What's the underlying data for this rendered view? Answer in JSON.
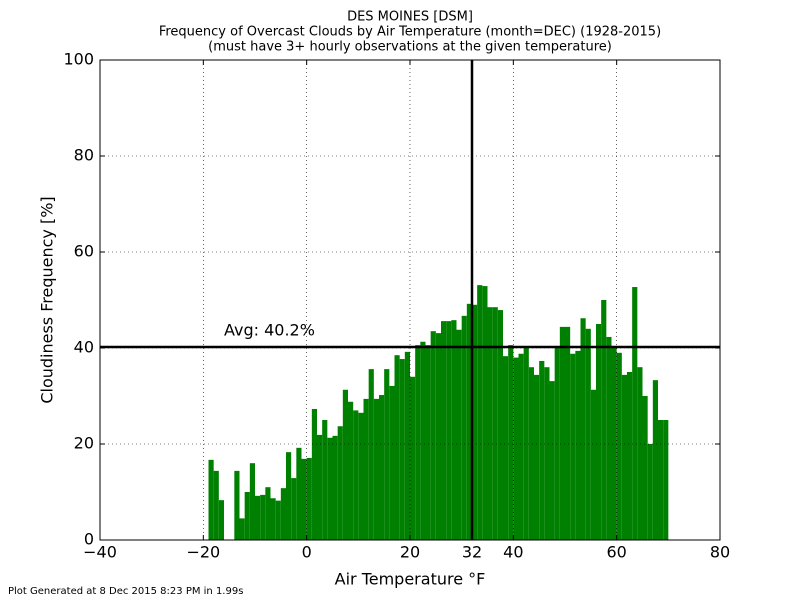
{
  "chart_data": {
    "type": "bar",
    "title": [
      "DES MOINES [DSM]",
      "Frequency of Overcast Clouds by Air Temperature (month=DEC) (1928-2015)",
      "(must have 3+ hourly observations at the given temperature)"
    ],
    "x_label": "Air Temperature °F",
    "y_label": "Cloudiness Frequency [%]",
    "footer": "Plot Generated at 8 Dec 2015 8:23 PM in 1.99s",
    "color": "#008000",
    "x": [
      -19,
      -18,
      -17,
      -16,
      -15,
      -14,
      -13,
      -12,
      -11,
      -10,
      -9,
      -8,
      -7,
      -6,
      -5,
      -4,
      -3,
      -2,
      -1,
      0,
      1,
      2,
      3,
      4,
      5,
      6,
      7,
      8,
      9,
      10,
      11,
      12,
      13,
      14,
      15,
      16,
      17,
      18,
      19,
      20,
      21,
      22,
      23,
      24,
      25,
      26,
      27,
      28,
      29,
      30,
      31,
      32,
      33,
      34,
      35,
      36,
      37,
      38,
      39,
      40,
      41,
      42,
      43,
      44,
      45,
      46,
      47,
      48,
      49,
      50,
      51,
      52,
      53,
      54,
      55,
      56,
      57,
      58,
      59,
      60,
      61,
      62,
      63,
      64,
      65,
      66,
      67,
      68,
      69
    ],
    "values": [
      16.7,
      14.4,
      8.3,
      null,
      null,
      14.4,
      4.5,
      10.0,
      16.0,
      9.2,
      9.4,
      11.0,
      8.7,
      8.2,
      10.8,
      18.3,
      12.9,
      19.2,
      16.9,
      17.1,
      27.3,
      21.9,
      25.0,
      21.3,
      21.7,
      23.7,
      31.3,
      28.8,
      27.0,
      26.5,
      29.4,
      35.6,
      29.4,
      30.2,
      35.6,
      32.1,
      38.5,
      37.7,
      39.2,
      34.0,
      40.6,
      41.3,
      40.6,
      43.5,
      43.1,
      45.6,
      45.6,
      45.8,
      43.8,
      46.7,
      49.2,
      49.0,
      53.1,
      52.9,
      48.5,
      48.5,
      47.9,
      38.3,
      40.6,
      38.0,
      38.8,
      40.0,
      36.0,
      34.4,
      37.3,
      36.0,
      33.1,
      40.2,
      44.4,
      44.4,
      38.8,
      39.4,
      46.2,
      44.0,
      31.3,
      45.0,
      50.0,
      42.3,
      40.2,
      39.0,
      34.4,
      35.0,
      52.7,
      36.0,
      30.0,
      20.0,
      33.3,
      25.0,
      25.0
    ],
    "xlim": [
      -40,
      80
    ],
    "xticks": [
      {
        "value": -40,
        "label": "−40"
      },
      {
        "value": -20,
        "label": "−20"
      },
      0,
      20,
      32,
      40,
      60,
      80
    ],
    "ylim": [
      0,
      100
    ],
    "yticks": [
      0,
      20,
      40,
      60,
      80,
      100
    ],
    "grid": true,
    "vline": 32,
    "avg_line": {
      "value": 40.2,
      "label": "Avg: 40.2%"
    }
  }
}
